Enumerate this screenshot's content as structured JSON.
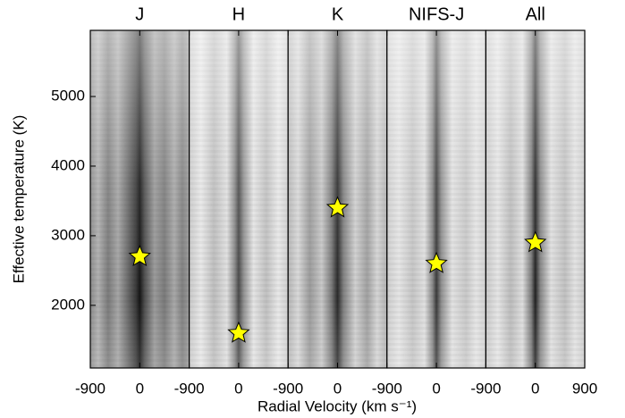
{
  "x_label": "Radial Velocity (km s⁻¹)",
  "y_label": "Effective temperature (K)",
  "chart_data": [
    {
      "type": "scatter",
      "title": "J",
      "x": [
        0
      ],
      "y": [
        2700
      ],
      "color": "#ffff00",
      "xlim": [
        -900,
        900
      ],
      "xticks": [
        -900,
        0
      ],
      "ylim": [
        1100,
        5950
      ],
      "yticks": [
        2000,
        3000,
        4000,
        5000
      ]
    },
    {
      "type": "scatter",
      "title": "H",
      "x": [
        0
      ],
      "y": [
        1600
      ],
      "color": "#ffff00",
      "xlim": [
        -900,
        900
      ],
      "xticks": [
        -900,
        0
      ],
      "ylim": [
        1100,
        5950
      ]
    },
    {
      "type": "scatter",
      "title": "K",
      "x": [
        0
      ],
      "y": [
        3400
      ],
      "color": "#ffff00",
      "xlim": [
        -900,
        900
      ],
      "xticks": [
        -900,
        0
      ],
      "ylim": [
        1100,
        5950
      ]
    },
    {
      "type": "scatter",
      "title": "NIFS-J",
      "x": [
        0
      ],
      "y": [
        2600
      ],
      "color": "#ffff00",
      "xlim": [
        -900,
        900
      ],
      "xticks": [
        -900,
        0
      ],
      "ylim": [
        1100,
        5950
      ]
    },
    {
      "type": "scatter",
      "title": "All",
      "x": [
        0
      ],
      "y": [
        2900
      ],
      "color": "#ffff00",
      "xlim": [
        -900,
        900
      ],
      "xticks": [
        -900,
        0,
        900
      ],
      "ylim": [
        1100,
        5950
      ]
    }
  ]
}
